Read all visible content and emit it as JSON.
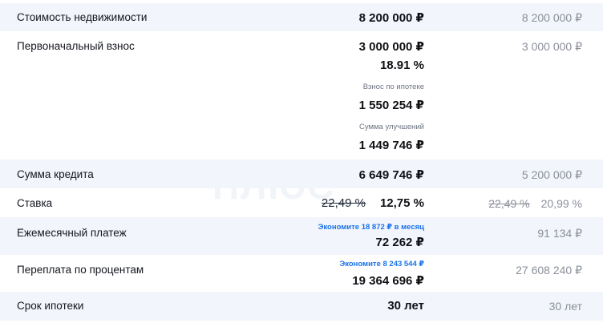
{
  "rows": {
    "price": {
      "label": "Стоимость недвижимости",
      "main": "8 200 000 ₽",
      "compare": "8 200 000 ₽"
    },
    "down": {
      "label": "Первоначальный взнос",
      "main": "3 000 000 ₽",
      "percent": "18.91 %",
      "mortgage_contribution_label": "Взнос по ипотеке",
      "mortgage_contribution": "1 550 254 ₽",
      "improvements_label": "Сумма улучшений",
      "improvements": "1 449 746 ₽",
      "compare": "3 000 000 ₽"
    },
    "loan": {
      "label": "Сумма кредита",
      "main": "6 649 746 ₽",
      "compare": "5 200 000 ₽"
    },
    "rate": {
      "label": "Ставка",
      "main_old": "22,49 %",
      "main": "12,75 %",
      "compare_old": "22,49 %",
      "compare": "20,99 %"
    },
    "monthly": {
      "label": "Ежемесячный платеж",
      "savings": "Экономите 18 872 ₽ в месяц",
      "main": "72 262 ₽",
      "compare": "91 134 ₽"
    },
    "overpay": {
      "label": "Переплата по процентам",
      "savings": "Экономите 8 243 544 ₽",
      "main": "19 364 696 ₽",
      "compare": "27 608 240 ₽"
    },
    "term": {
      "label": "Срок ипотеки",
      "main": "30 лет",
      "compare": "30 лет"
    }
  },
  "colors": {
    "accent": "#1a73e8",
    "row_shade": "#f2f5fb",
    "muted": "#8a8f99"
  }
}
